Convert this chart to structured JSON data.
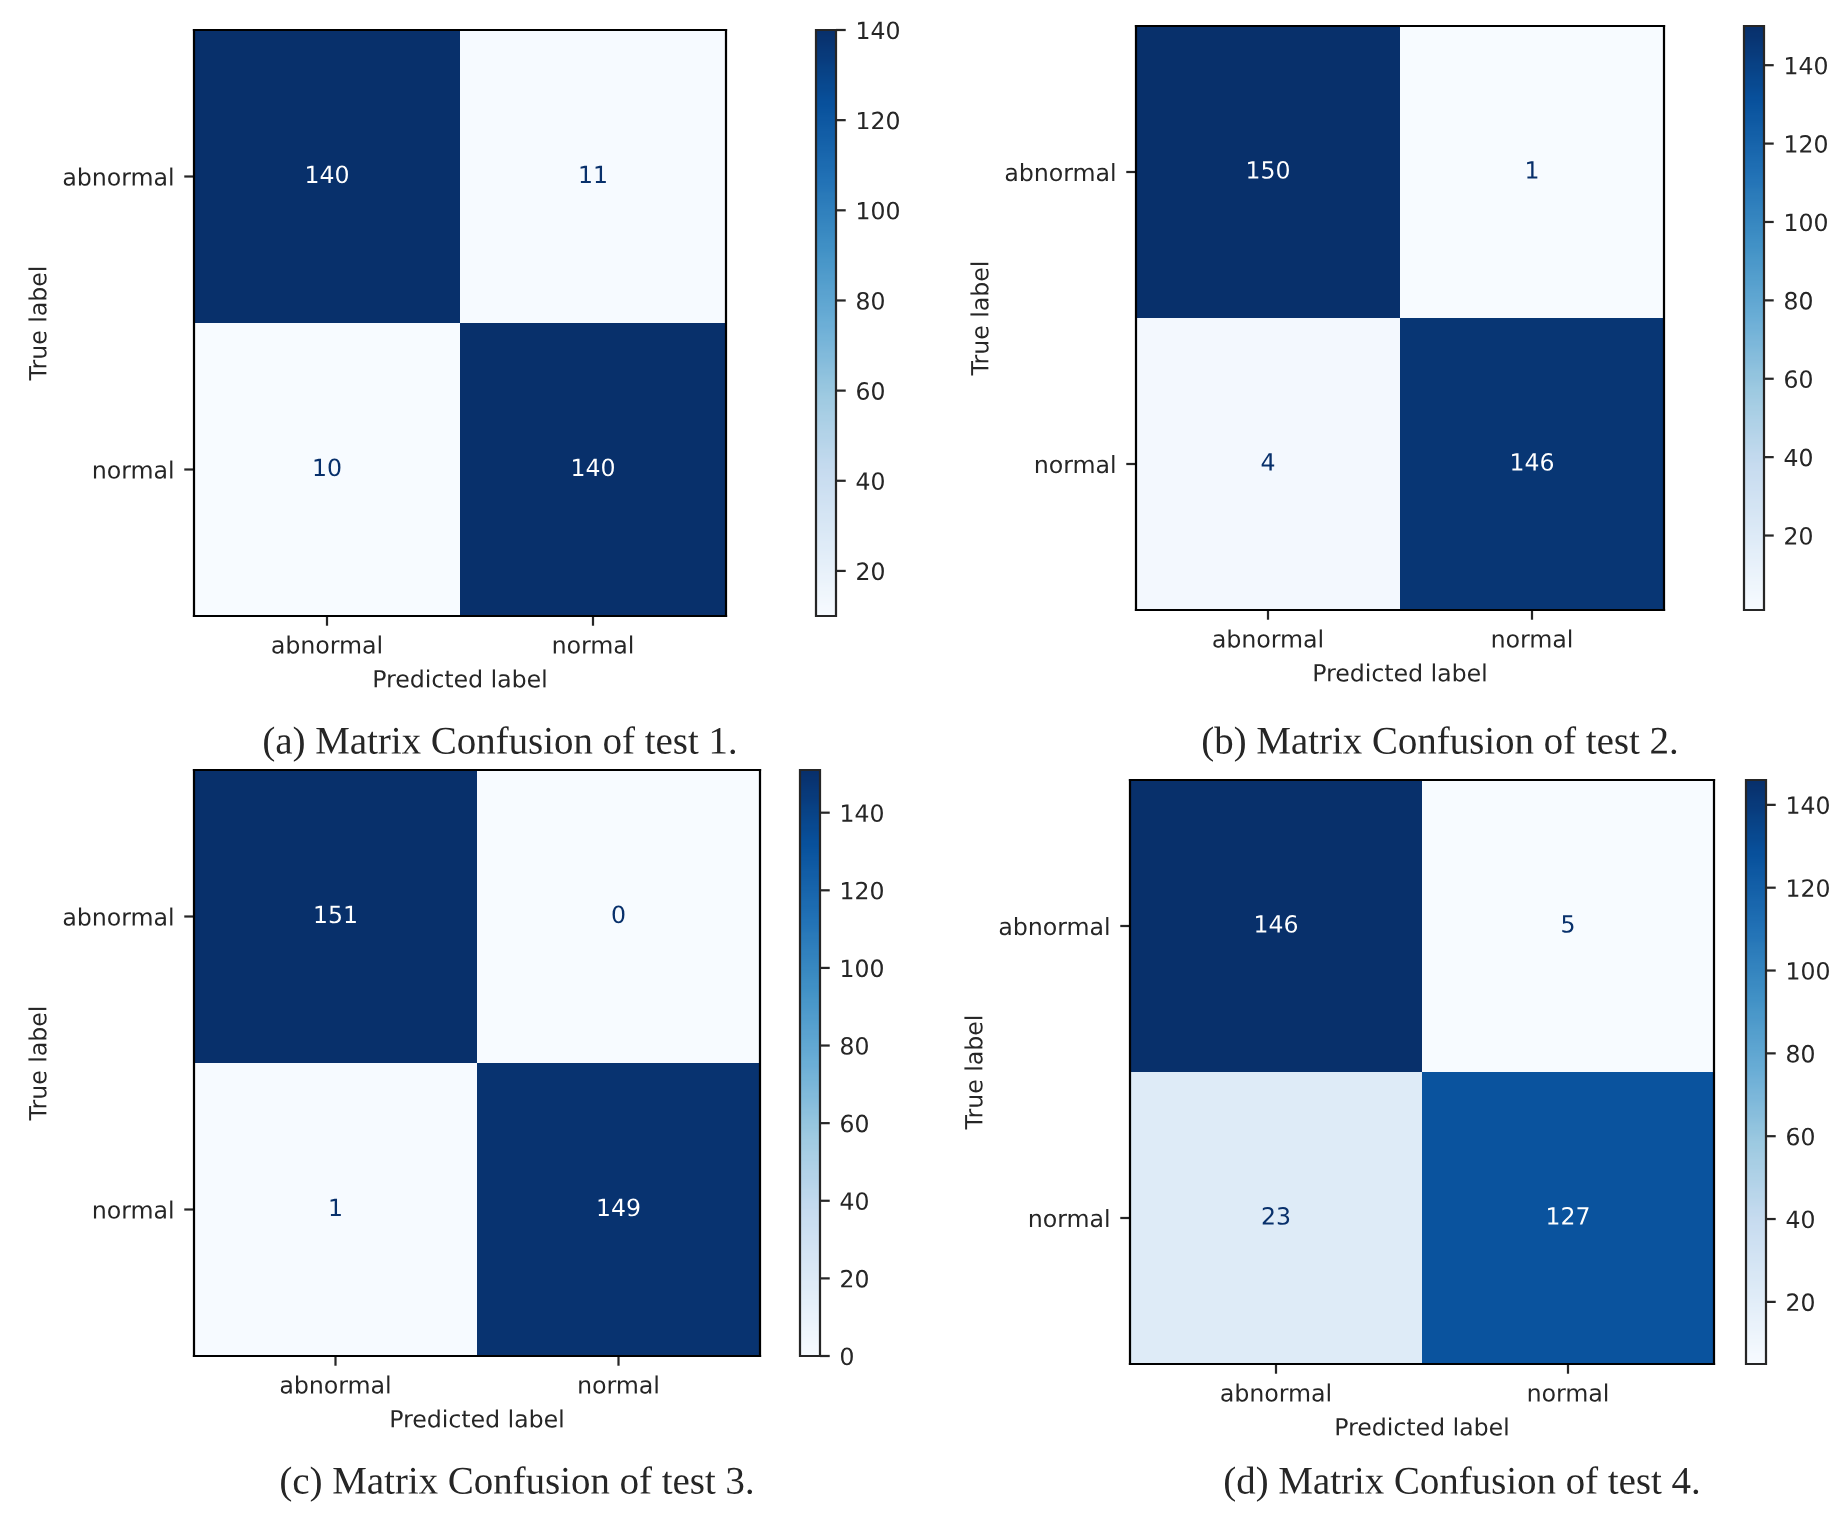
{
  "chart_data": [
    {
      "type": "heatmap",
      "categories": [
        "abnormal",
        "normal"
      ],
      "y_categories": [
        "abnormal",
        "normal"
      ],
      "xlabel": "Predicted label",
      "ylabel": "True label",
      "cells": [
        [
          140,
          11
        ],
        [
          10,
          140
        ]
      ],
      "clim": [
        10,
        140
      ],
      "cticks": [
        20,
        40,
        60,
        80,
        100,
        120,
        140
      ],
      "data_labels": true,
      "annotations": [
        "(a) Matrix Confusion of test 1."
      ]
    },
    {
      "type": "heatmap",
      "categories": [
        "abnormal",
        "normal"
      ],
      "y_categories": [
        "abnormal",
        "normal"
      ],
      "xlabel": "Predicted label",
      "ylabel": "True label",
      "cells": [
        [
          150,
          1
        ],
        [
          4,
          146
        ]
      ],
      "clim": [
        1,
        150
      ],
      "cticks": [
        20,
        40,
        60,
        80,
        100,
        120,
        140
      ],
      "data_labels": true,
      "annotations": [
        "(b) Matrix Confusion of test 2."
      ]
    },
    {
      "type": "heatmap",
      "categories": [
        "abnormal",
        "normal"
      ],
      "y_categories": [
        "abnormal",
        "normal"
      ],
      "xlabel": "Predicted label",
      "ylabel": "True label",
      "cells": [
        [
          151,
          0
        ],
        [
          1,
          149
        ]
      ],
      "clim": [
        0,
        151
      ],
      "cticks": [
        0,
        20,
        40,
        60,
        80,
        100,
        120,
        140
      ],
      "data_labels": true,
      "annotations": [
        "(c) Matrix Confusion of test 3."
      ]
    },
    {
      "type": "heatmap",
      "categories": [
        "abnormal",
        "normal"
      ],
      "y_categories": [
        "abnormal",
        "normal"
      ],
      "xlabel": "Predicted label",
      "ylabel": "True label",
      "cells": [
        [
          146,
          5
        ],
        [
          23,
          127
        ]
      ],
      "clim": [
        5,
        146
      ],
      "cticks": [
        20,
        40,
        60,
        80,
        100,
        120,
        140
      ],
      "data_labels": true,
      "annotations": [
        "(d) Matrix Confusion of test 4."
      ]
    }
  ]
}
